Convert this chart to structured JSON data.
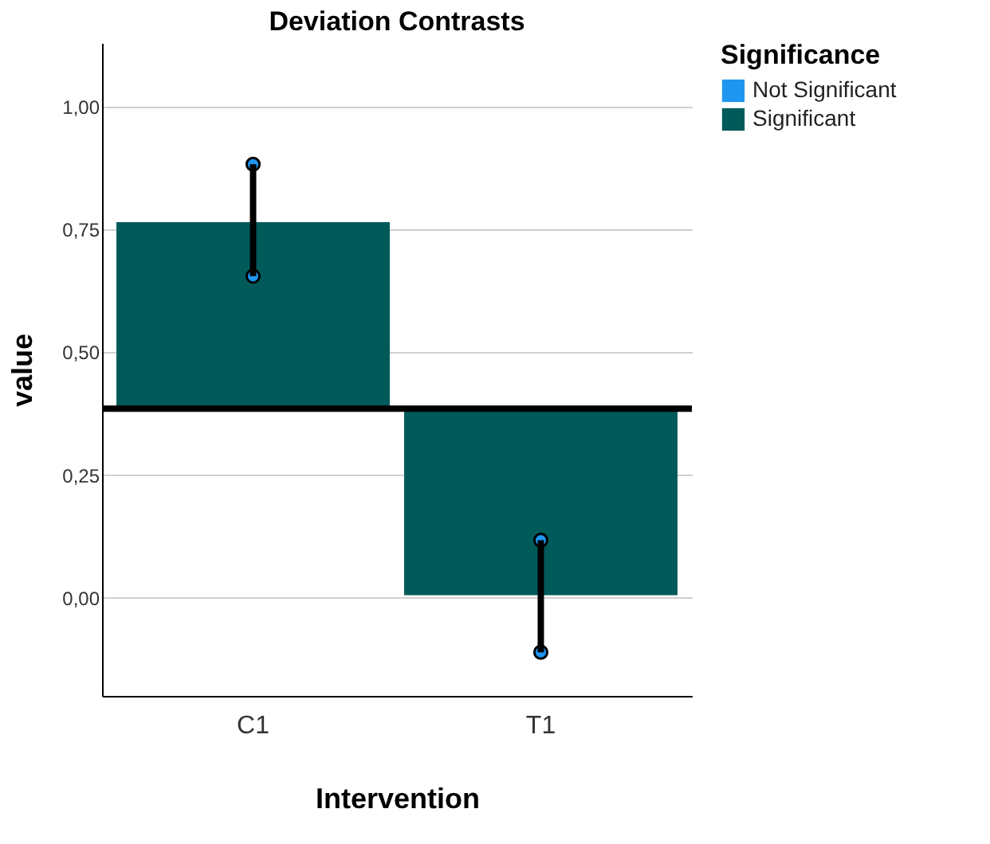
{
  "chart_data": {
    "type": "bar",
    "title": "Deviation Contrasts",
    "xlabel": "Intervention",
    "ylabel": "value",
    "legend_title": "Significance",
    "categories": [
      "C1",
      "T1"
    ],
    "series": [
      {
        "name": "Not Significant",
        "color": "#1e96f0",
        "values": [
          null,
          null
        ]
      },
      {
        "name": "Significant",
        "color": "#005a5a",
        "values": [
          0.38,
          -0.38
        ],
        "base": [
          0.385,
          0.385
        ],
        "errors": [
          [
            0.655,
            0.883
          ],
          [
            -0.111,
            0.117
          ]
        ]
      },
      {
        "type": "scatter",
        "color": "#1e96f0",
        "x": [
          "C1",
          "C1",
          "T1",
          "T1"
        ],
        "values": [
          0.655,
          0.883,
          -0.111,
          0.117
        ]
      }
    ],
    "ylim": [
      -0.2,
      1.13
    ],
    "yticks": [
      {
        "value": 0,
        "label": "0,00"
      },
      {
        "value": 0.25,
        "label": "0,25"
      },
      {
        "value": 0.5,
        "label": "0,50"
      },
      {
        "value": 0.75,
        "label": "0,75"
      },
      {
        "value": 1,
        "label": "1,00"
      }
    ],
    "ref_lines": [
      {
        "axis": "y",
        "value": 0.385,
        "color": "#000000"
      }
    ],
    "grid": "y",
    "legend": "top right",
    "marker": "circle"
  }
}
